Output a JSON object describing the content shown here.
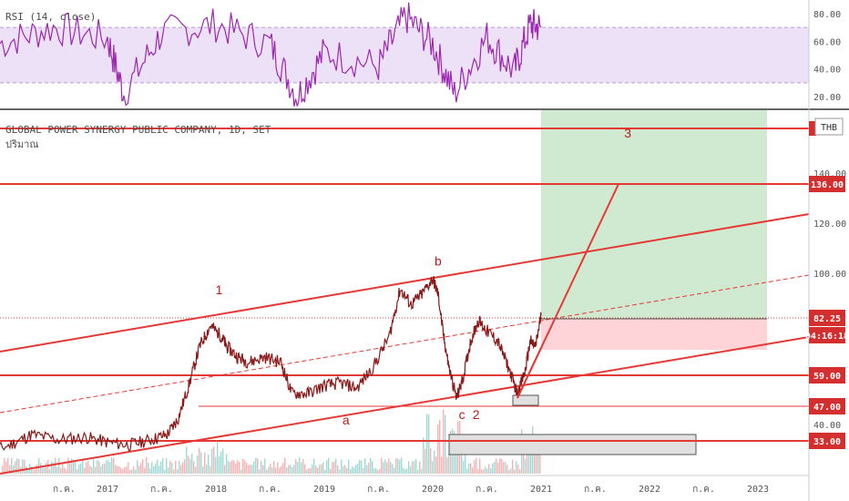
{
  "chart_data": [
    {
      "type": "line",
      "indicator": "RSI",
      "label": "RSI (14, close)",
      "y_ticks": [
        "80.00",
        "60.00",
        "40.00",
        "20.00"
      ],
      "ylim": [
        10,
        90
      ],
      "overbought": 70,
      "oversold": 30,
      "line_color": "#9c27b0",
      "band_color": "#e9dcf7",
      "series": [
        {
          "x": [
            2016.0,
            2016.5,
            2017.0,
            2017.15,
            2017.5,
            2018.0,
            2018.5,
            2018.75,
            2019.0,
            2019.5,
            2019.75,
            2020.0,
            2020.2,
            2020.5,
            2020.75,
            2020.9,
            2021.0
          ],
          "values": [
            58,
            70,
            62,
            22,
            66,
            72,
            58,
            20,
            52,
            42,
            78,
            58,
            22,
            63,
            38,
            72,
            70
          ]
        }
      ]
    },
    {
      "type": "line",
      "title": "GLOBAL POWER SYNERGY PUBLIC COMPANY, 1D, SET",
      "subtitle": "ปริมาณ",
      "currency": "THB",
      "x_ticks": [
        {
          "x": 2016.6,
          "label": "ก.ค."
        },
        {
          "x": 2017.0,
          "label": "2017"
        },
        {
          "x": 2017.5,
          "label": "ก.ค."
        },
        {
          "x": 2018.0,
          "label": "2018"
        },
        {
          "x": 2018.5,
          "label": "ก.ค."
        },
        {
          "x": 2019.0,
          "label": "2019"
        },
        {
          "x": 2019.5,
          "label": "ก.ค."
        },
        {
          "x": 2020.0,
          "label": "2020"
        },
        {
          "x": 2020.5,
          "label": "ก.ค."
        },
        {
          "x": 2021.0,
          "label": "2021"
        },
        {
          "x": 2021.5,
          "label": "ก.ค."
        },
        {
          "x": 2022.0,
          "label": "2022"
        },
        {
          "x": 2022.5,
          "label": "ก.ค."
        },
        {
          "x": 2023.0,
          "label": "2023"
        }
      ],
      "y_ticks": [
        "140.00",
        "120.00",
        "100.00",
        "40.00"
      ],
      "price_labels": [
        {
          "value": 136,
          "label": "136.00",
          "color": "#d32f2f"
        },
        {
          "value": 82.25,
          "label": "82.25",
          "color": "#d32f2f"
        },
        {
          "value": 77,
          "label": "04:16:18",
          "color": "#d32f2f"
        },
        {
          "value": 59,
          "label": "59.00",
          "color": "#d32f2f"
        },
        {
          "value": 47,
          "label": "47.00",
          "color": "#d32f2f"
        },
        {
          "value": 33,
          "label": "33.00",
          "color": "#d32f2f"
        }
      ],
      "last_price": 82.25,
      "horizontal_levels": [
        33,
        47,
        59,
        136
      ],
      "wave_labels": [
        {
          "text": "1",
          "x": 2018.03,
          "y": 90
        },
        {
          "text": "b",
          "x": 2020.05,
          "y": 101
        },
        {
          "text": "a",
          "x": 2019.2,
          "y": 40
        },
        {
          "text": "c",
          "x": 2020.27,
          "y": 42
        },
        {
          "text": "2",
          "x": 2020.4,
          "y": 42
        },
        {
          "text": "3",
          "x": 2021.8,
          "y": 150
        }
      ],
      "series": [
        {
          "name": "",
          "x": [
            2015.85,
            2016.1,
            2016.3,
            2016.55,
            2016.8,
            2017.0,
            2017.2,
            2017.4,
            2017.55,
            2017.65,
            2017.75,
            2017.85,
            2017.95,
            2018.05,
            2018.1,
            2018.2,
            2018.3,
            2018.45,
            2018.6,
            2018.7,
            2018.85,
            2019.0,
            2019.15,
            2019.3,
            2019.45,
            2019.6,
            2019.7,
            2019.8,
            2019.9,
            2020.0,
            2020.05,
            2020.1,
            2020.15,
            2020.22,
            2020.28,
            2020.35,
            2020.42,
            2020.5,
            2020.6,
            2020.7,
            2020.78,
            2020.85,
            2020.9,
            2020.95,
            2021.0
          ],
          "values": [
            28,
            32,
            36,
            34,
            35,
            33,
            32,
            34,
            36,
            42,
            55,
            70,
            78,
            74,
            70,
            66,
            64,
            66,
            64,
            52,
            52,
            55,
            56,
            54,
            62,
            74,
            92,
            86,
            90,
            96,
            90,
            74,
            62,
            50,
            58,
            72,
            80,
            76,
            72,
            62,
            52,
            60,
            72,
            70,
            82
          ]
        }
      ]
    }
  ]
}
